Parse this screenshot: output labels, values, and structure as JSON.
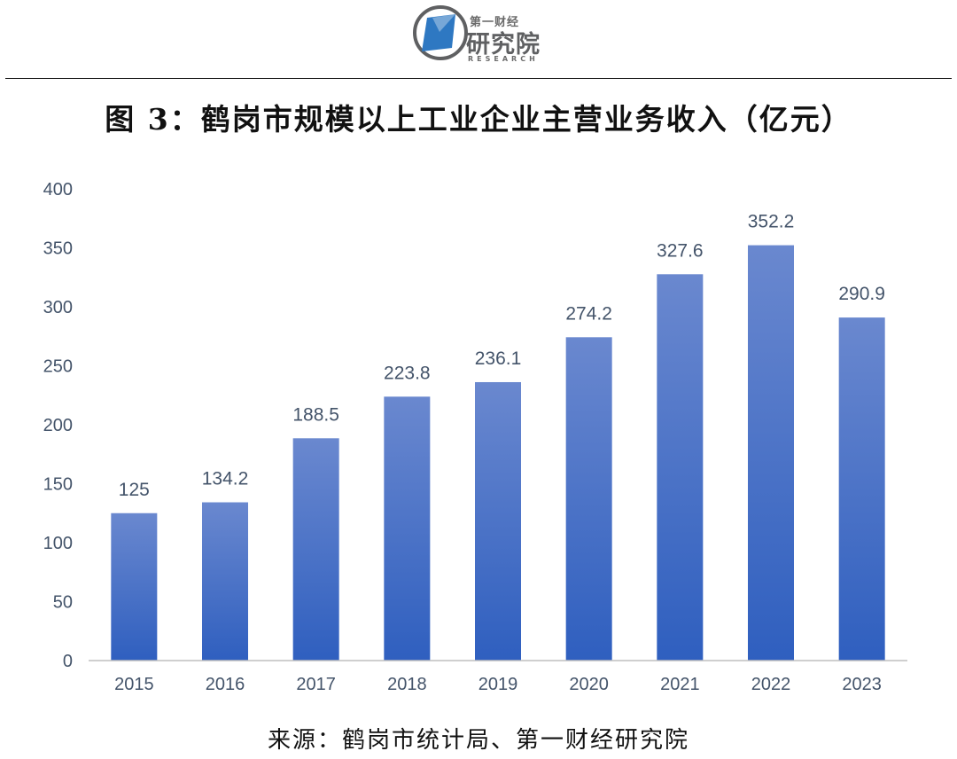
{
  "logo": {
    "top_text": "第一财经",
    "main_text": "研究院",
    "sub_text": "RESEARCH",
    "colors": {
      "blue": "#2e78c2",
      "gray": "#5f6062"
    }
  },
  "title": "图 3：鹤岗市规模以上工业企业主营业务收入（亿元）",
  "source": "来源：鹤岗市统计局、第一财经研究院",
  "chart_data": {
    "type": "bar",
    "categories": [
      "2015",
      "2016",
      "2017",
      "2018",
      "2019",
      "2020",
      "2021",
      "2022",
      "2023"
    ],
    "values": [
      125,
      134.2,
      188.5,
      223.8,
      236.1,
      274.2,
      327.6,
      352.2,
      290.9
    ],
    "data_labels": [
      "125",
      "134.2",
      "188.5",
      "223.8",
      "236.1",
      "274.2",
      "327.6",
      "352.2",
      "290.9"
    ],
    "y_ticks": [
      0,
      50,
      100,
      150,
      200,
      250,
      300,
      350,
      400
    ],
    "ylim": [
      0,
      400
    ],
    "grid": false,
    "colors": {
      "bar_top": "#6a88cf",
      "bar_bottom": "#2f5fbf",
      "label": "#44546a",
      "axis": "#bfbfbf"
    }
  }
}
